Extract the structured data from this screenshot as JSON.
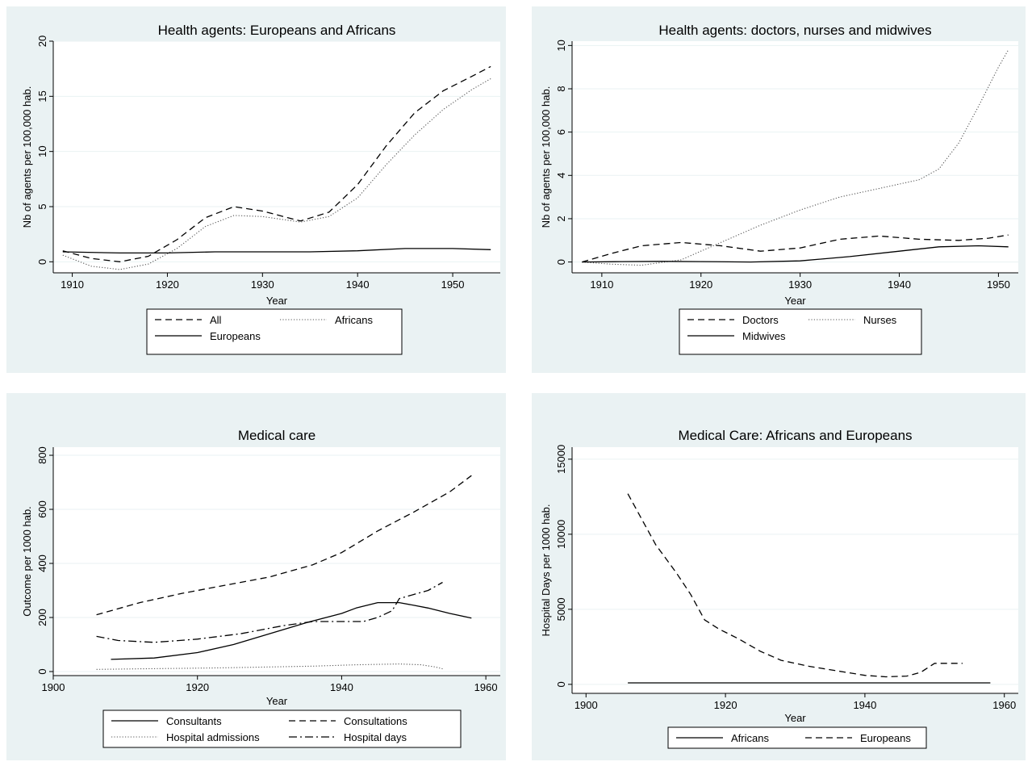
{
  "chart_data": [
    {
      "type": "line",
      "title": "Health agents: Europeans and Africans",
      "xlabel": "Year",
      "ylabel": "Nb of agents per 100,000 hab.",
      "xlim": [
        1908,
        1955
      ],
      "ylim": [
        -1,
        20
      ],
      "xticks": [
        1910,
        1920,
        1930,
        1940,
        1950
      ],
      "yticks": [
        0,
        5,
        10,
        15,
        20
      ],
      "grid": true,
      "legend_position": "bottom",
      "legend_columns": 2,
      "series": [
        {
          "name": "All",
          "style": "dashed",
          "x": [
            1909,
            1912,
            1915,
            1918,
            1921,
            1924,
            1927,
            1930,
            1934,
            1937,
            1940,
            1943,
            1946,
            1949,
            1952,
            1954
          ],
          "y": [
            1.0,
            0.3,
            0.0,
            0.5,
            2.0,
            4.0,
            5.0,
            4.6,
            3.7,
            4.5,
            7.0,
            10.5,
            13.5,
            15.5,
            16.8,
            17.7
          ]
        },
        {
          "name": "Africans",
          "style": "dotted",
          "x": [
            1909,
            1912,
            1915,
            1918,
            1921,
            1924,
            1927,
            1930,
            1934,
            1937,
            1940,
            1943,
            1946,
            1949,
            1952,
            1954
          ],
          "y": [
            0.6,
            -0.4,
            -0.7,
            -0.2,
            1.2,
            3.2,
            4.2,
            4.1,
            3.6,
            4.1,
            5.8,
            8.8,
            11.5,
            13.8,
            15.6,
            16.6
          ]
        },
        {
          "name": "Europeans",
          "style": "solid",
          "x": [
            1909,
            1915,
            1920,
            1925,
            1930,
            1935,
            1940,
            1945,
            1950,
            1954
          ],
          "y": [
            0.9,
            0.8,
            0.8,
            0.9,
            0.9,
            0.9,
            1.0,
            1.2,
            1.2,
            1.1
          ]
        }
      ]
    },
    {
      "type": "line",
      "title": "Health agents: doctors, nurses and midwives",
      "xlabel": "Year",
      "ylabel": "Nb of agents per 100,000 hab.",
      "xlim": [
        1907,
        1952
      ],
      "ylim": [
        -0.5,
        10.2
      ],
      "xticks": [
        1910,
        1920,
        1930,
        1940,
        1950
      ],
      "yticks": [
        0,
        2,
        4,
        6,
        8,
        10
      ],
      "grid": true,
      "legend_position": "bottom",
      "legend_columns": 2,
      "series": [
        {
          "name": "Doctors",
          "style": "dashed",
          "x": [
            1908,
            1911,
            1914,
            1918,
            1922,
            1926,
            1930,
            1934,
            1938,
            1942,
            1946,
            1949,
            1951
          ],
          "y": [
            0.0,
            0.4,
            0.75,
            0.9,
            0.75,
            0.5,
            0.65,
            1.05,
            1.2,
            1.05,
            1.0,
            1.1,
            1.25
          ]
        },
        {
          "name": "Nurses",
          "style": "dotted",
          "x": [
            1908,
            1911,
            1914,
            1918,
            1922,
            1926,
            1930,
            1934,
            1938,
            1942,
            1944,
            1946,
            1948,
            1950,
            1951
          ],
          "y": [
            0.0,
            -0.1,
            -0.15,
            0.1,
            0.9,
            1.7,
            2.4,
            3.0,
            3.4,
            3.8,
            4.3,
            5.5,
            7.2,
            9.0,
            9.8
          ]
        },
        {
          "name": "Midwives",
          "style": "solid",
          "x": [
            1908,
            1912,
            1916,
            1920,
            1925,
            1930,
            1935,
            1940,
            1944,
            1948,
            1951
          ],
          "y": [
            0.0,
            0.02,
            0.03,
            0.02,
            0.0,
            0.05,
            0.25,
            0.5,
            0.7,
            0.75,
            0.7
          ]
        }
      ]
    },
    {
      "type": "line",
      "title": "Medical care",
      "xlabel": "Year",
      "ylabel": "Outcome per 1000 hab.",
      "xlim": [
        1900,
        1962
      ],
      "ylim": [
        -15,
        830
      ],
      "xticks": [
        1900,
        1920,
        1940,
        1960
      ],
      "yticks": [
        0,
        200,
        400,
        600,
        800
      ],
      "grid": true,
      "legend_position": "bottom",
      "legend_columns": 2,
      "series": [
        {
          "name": "Consultants",
          "style": "solid",
          "x": [
            1908,
            1914,
            1920,
            1925,
            1930,
            1935,
            1940,
            1942,
            1945,
            1948,
            1950,
            1952,
            1955,
            1958
          ],
          "y": [
            45,
            50,
            70,
            100,
            140,
            180,
            215,
            235,
            255,
            255,
            245,
            235,
            215,
            198
          ]
        },
        {
          "name": "Consultations",
          "style": "dashed",
          "x": [
            1906,
            1912,
            1918,
            1924,
            1930,
            1936,
            1940,
            1945,
            1950,
            1955,
            1958
          ],
          "y": [
            210,
            255,
            290,
            320,
            350,
            395,
            440,
            520,
            590,
            665,
            725
          ]
        },
        {
          "name": "Hospital admissions",
          "style": "dotted",
          "x": [
            1906,
            1912,
            1918,
            1924,
            1930,
            1936,
            1942,
            1948,
            1951,
            1953,
            1954
          ],
          "y": [
            8,
            10,
            12,
            14,
            17,
            20,
            25,
            28,
            25,
            17,
            10
          ]
        },
        {
          "name": "Hospital days",
          "style": "dashdot",
          "x": [
            1906,
            1909,
            1914,
            1920,
            1926,
            1932,
            1936,
            1940,
            1943,
            1945,
            1947,
            1948,
            1950,
            1952,
            1954
          ],
          "y": [
            130,
            115,
            108,
            120,
            140,
            170,
            185,
            185,
            185,
            200,
            225,
            270,
            285,
            300,
            330
          ]
        }
      ]
    },
    {
      "type": "line",
      "title": "Medical Care: Africans and Europeans",
      "xlabel": "Year",
      "ylabel": "Hospital Days per 1000 hab.",
      "xlim": [
        1898,
        1962
      ],
      "ylim": [
        -600,
        15800
      ],
      "xticks": [
        1900,
        1920,
        1940,
        1960
      ],
      "yticks": [
        0,
        5000,
        10000,
        15000
      ],
      "grid": true,
      "legend_position": "bottom",
      "legend_columns": 2,
      "series": [
        {
          "name": "Africans",
          "style": "solid",
          "x": [
            1906,
            1930,
            1958
          ],
          "y": [
            100,
            100,
            100
          ]
        },
        {
          "name": "Europeans",
          "style": "dashed",
          "x": [
            1906,
            1908,
            1910,
            1913,
            1915,
            1917,
            1919,
            1922,
            1925,
            1928,
            1932,
            1936,
            1940,
            1943,
            1946,
            1948,
            1950,
            1954
          ],
          "y": [
            12700,
            11000,
            9300,
            7400,
            6000,
            4300,
            3700,
            3000,
            2200,
            1600,
            1200,
            900,
            600,
            500,
            550,
            800,
            1400,
            1400
          ]
        }
      ]
    }
  ]
}
